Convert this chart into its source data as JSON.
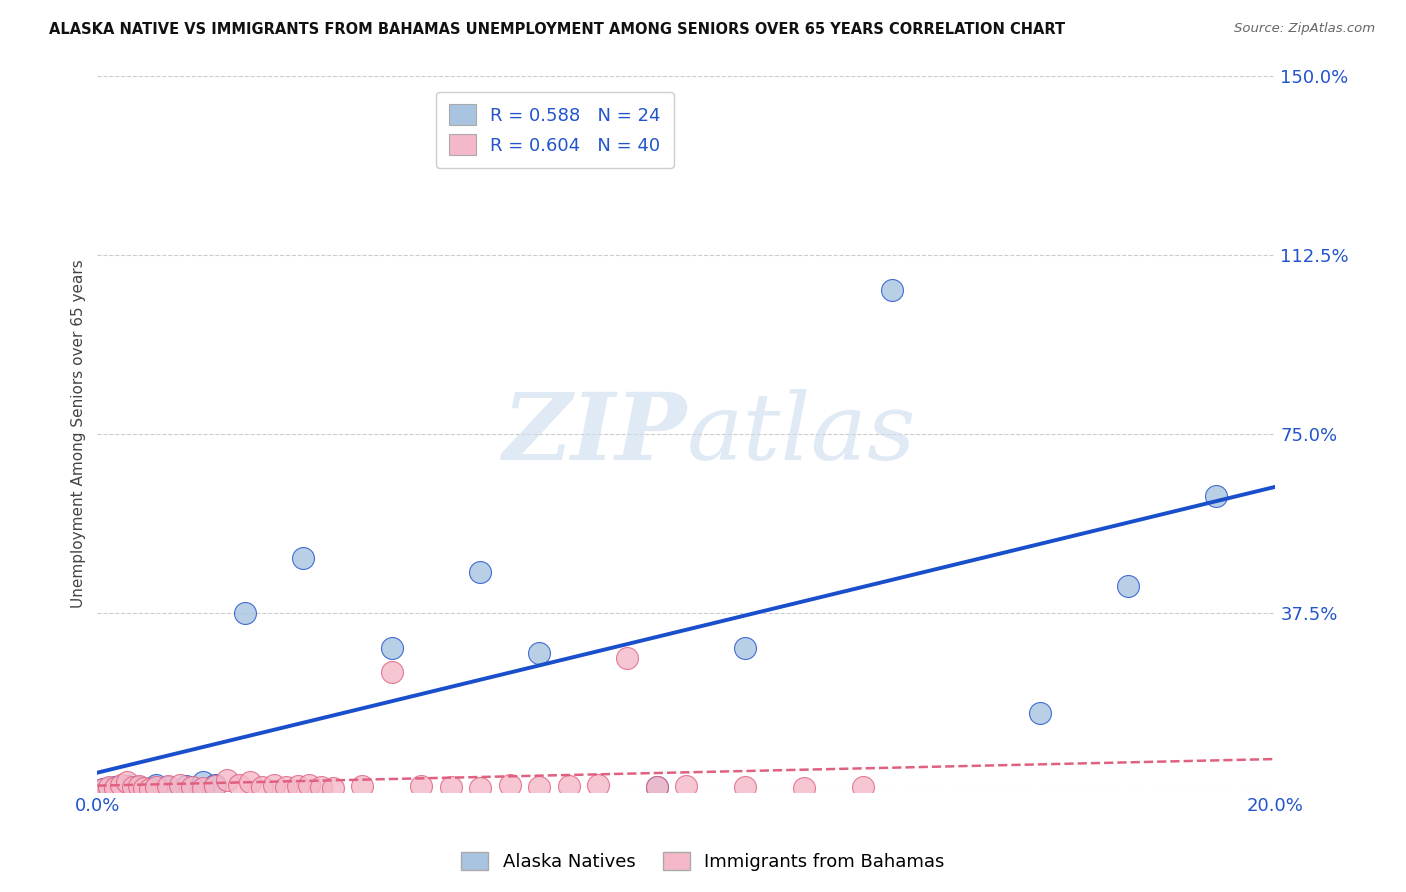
{
  "title": "ALASKA NATIVE VS IMMIGRANTS FROM BAHAMAS UNEMPLOYMENT AMONG SENIORS OVER 65 YEARS CORRELATION CHART",
  "source": "Source: ZipAtlas.com",
  "ylabel": "Unemployment Among Seniors over 65 years",
  "xmin": 0.0,
  "xmax": 0.2,
  "ymin": 0.0,
  "ymax": 1.5,
  "yticks": [
    0.0,
    0.375,
    0.75,
    1.125,
    1.5
  ],
  "ytick_labels": [
    "",
    "37.5%",
    "75.0%",
    "112.5%",
    "150.0%"
  ],
  "xticks": [
    0.0,
    0.05,
    0.1,
    0.15,
    0.2
  ],
  "xtick_labels": [
    "0.0%",
    "",
    "",
    "",
    "20.0%"
  ],
  "alaska_R": 0.588,
  "alaska_N": 24,
  "bahamas_R": 0.604,
  "bahamas_N": 40,
  "alaska_color": "#a8c4e0",
  "bahamas_color": "#f4b8c8",
  "alaska_line_color": "#1a4fcc",
  "bahamas_line_color": "#e06080",
  "watermark_zip": "ZIP",
  "watermark_atlas": "atlas",
  "alaska_x": [
    0.001,
    0.002,
    0.003,
    0.004,
    0.005,
    0.006,
    0.007,
    0.008,
    0.01,
    0.012,
    0.015,
    0.018,
    0.02,
    0.025,
    0.035,
    0.05,
    0.065,
    0.075,
    0.095,
    0.11,
    0.135,
    0.16,
    0.175,
    0.19
  ],
  "alaska_y": [
    0.005,
    0.008,
    0.01,
    0.006,
    0.012,
    0.008,
    0.01,
    0.006,
    0.015,
    0.01,
    0.012,
    0.02,
    0.015,
    0.375,
    0.49,
    0.3,
    0.46,
    0.29,
    0.01,
    0.3,
    1.05,
    0.165,
    0.43,
    0.62
  ],
  "bahamas_x": [
    0.001,
    0.002,
    0.003,
    0.004,
    0.005,
    0.006,
    0.007,
    0.008,
    0.009,
    0.01,
    0.012,
    0.014,
    0.016,
    0.018,
    0.02,
    0.022,
    0.024,
    0.026,
    0.028,
    0.03,
    0.032,
    0.034,
    0.036,
    0.038,
    0.04,
    0.045,
    0.05,
    0.055,
    0.06,
    0.065,
    0.07,
    0.075,
    0.08,
    0.085,
    0.09,
    0.095,
    0.1,
    0.11,
    0.12,
    0.13
  ],
  "bahamas_y": [
    0.005,
    0.01,
    0.008,
    0.015,
    0.02,
    0.01,
    0.012,
    0.008,
    0.005,
    0.01,
    0.012,
    0.015,
    0.01,
    0.008,
    0.012,
    0.025,
    0.015,
    0.02,
    0.01,
    0.015,
    0.01,
    0.012,
    0.015,
    0.01,
    0.008,
    0.012,
    0.25,
    0.012,
    0.01,
    0.008,
    0.015,
    0.01,
    0.012,
    0.015,
    0.28,
    0.01,
    0.012,
    0.01,
    0.008,
    0.01
  ]
}
